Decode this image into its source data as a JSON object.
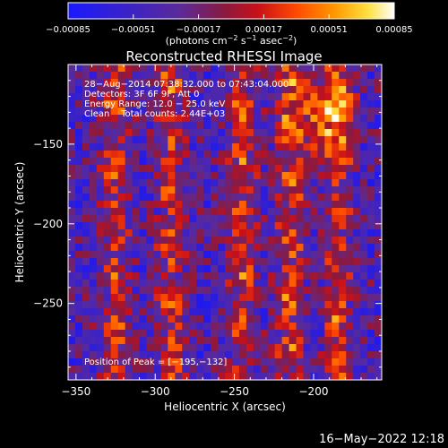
{
  "chart_data": {
    "type": "heatmap",
    "title": "Reconstructed RHESSI Image",
    "xlabel": "Heliocentric X (arcsec)",
    "ylabel": "Heliocentric Y (arcsec)",
    "xlim": [
      -355,
      -157
    ],
    "ylim": [
      -298,
      -100
    ],
    "x_ticks": [
      -350,
      -300,
      -250,
      -200
    ],
    "x_tick_labels": [
      "−350",
      "−300",
      "−250",
      "−200"
    ],
    "y_ticks": [
      -150,
      -200,
      -250
    ],
    "y_tick_labels": [
      "−150",
      "−200",
      "−250"
    ],
    "colorbar": {
      "min": -0.00085,
      "max": 0.00085,
      "ticks": [
        -0.00085,
        -0.00051,
        -0.00017,
        0.00017,
        0.00051,
        0.00085
      ],
      "tick_labels": [
        "−0.00085",
        "−0.00051",
        "−0.00017",
        "0.00017",
        "0.00051",
        "0.00085"
      ],
      "unit_main": "(photons cm",
      "unit_sup1": "−2",
      "unit_mid": " s",
      "unit_sup2": "−1",
      "unit_end": " asec",
      "unit_sup3": "−2",
      "unit_close": ")",
      "colormap": "blue-purple-red-orange-yellow-white"
    },
    "annotations": [
      "28−Aug−2014 07:38:32.000 to 07:43:04.000",
      "Detectors: 3F 6F 9F, Att 0",
      "Energy Range: 12.0 − 25.0 keV",
      "Clean    Total counts: 2.44E+03"
    ],
    "peak_label": "Position of Peak = [−195,−132]",
    "peak_x": -195,
    "peak_y": -132,
    "source_columns_x": [
      -325,
      -290,
      -245,
      -215,
      -185
    ],
    "footer_timestamp": "16−May−2022 12:18"
  }
}
